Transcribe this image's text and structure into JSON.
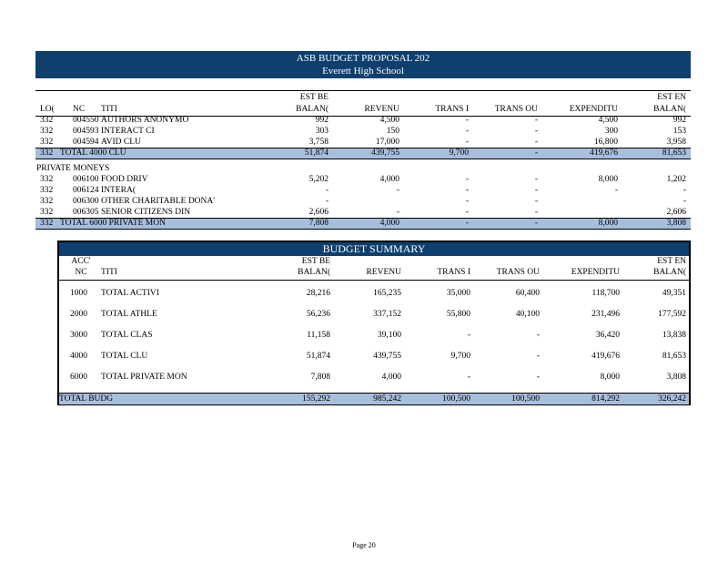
{
  "document": {
    "title": "ASB BUDGET PROPOSAL 202",
    "school": "Everett High School",
    "page_label": "Page 20"
  },
  "detail": {
    "headers": {
      "loc": "LO(",
      "no": "NC",
      "title": "TITI",
      "est_beg_1": "EST BE",
      "est_beg_2": "BALAN(",
      "revenue": "REVENU",
      "trans_in": "TRANS I",
      "trans_out": "TRANS OU",
      "expenditures": "EXPENDITU",
      "est_end_1": "EST EN",
      "est_end_2": "BALAN("
    },
    "rows": [
      {
        "loc": "332",
        "no": "004550",
        "title": "AUTHORS ANONYMO",
        "est_beg": "992",
        "revenue": "4,500",
        "trans_in": "-",
        "trans_out": "-",
        "expenditures": "4,500",
        "est_end": "992"
      },
      {
        "loc": "332",
        "no": "004593",
        "title": "INTERACT CI",
        "est_beg": "303",
        "revenue": "150",
        "trans_in": "-",
        "trans_out": "-",
        "expenditures": "300",
        "est_end": "153"
      },
      {
        "loc": "332",
        "no": "004594",
        "title": "AVID CLU",
        "est_beg": "3,758",
        "revenue": "17,000",
        "trans_in": "-",
        "trans_out": "-",
        "expenditures": "16,800",
        "est_end": "3,958"
      }
    ],
    "total_clubs": {
      "loc": "332",
      "title": "TOTAL 4000 CLU",
      "est_beg": "51,874",
      "revenue": "439,755",
      "trans_in": "9,700",
      "trans_out": "-",
      "expenditures": "419,676",
      "est_end": "81,653"
    },
    "private_heading": "PRIVATE MONEYS",
    "private_rows": [
      {
        "loc": "332",
        "no": "006100",
        "title": "FOOD DRIV",
        "est_beg": "5,202",
        "revenue": "4,000",
        "trans_in": "-",
        "trans_out": "-",
        "expenditures": "8,000",
        "est_end": "1,202"
      },
      {
        "loc": "332",
        "no": "006124",
        "title": "INTERA(",
        "est_beg": "-",
        "revenue": "-",
        "trans_in": "-",
        "trans_out": "-",
        "expenditures": "-",
        "est_end": "-"
      },
      {
        "loc": "332",
        "no": "006300",
        "title": "OTHER CHARITABLE DONA'",
        "est_beg": "-",
        "revenue": "",
        "trans_in": "-",
        "trans_out": "-",
        "expenditures": "",
        "est_end": "-"
      },
      {
        "loc": "332",
        "no": "006305",
        "title": "SENIOR CITIZENS DIN",
        "est_beg": "2,606",
        "revenue": "-",
        "trans_in": "-",
        "trans_out": "-",
        "expenditures": "",
        "est_end": "2,606"
      }
    ],
    "total_private": {
      "loc": "332",
      "title": "TOTAL 6000 PRIVATE MON",
      "est_beg": "7,808",
      "revenue": "4,000",
      "trans_in": "-",
      "trans_out": "-",
      "expenditures": "8,000",
      "est_end": "3,808"
    }
  },
  "summary": {
    "title": "BUDGET SUMMARY",
    "headers": {
      "acct_1": "ACC'",
      "acct_2": "NC",
      "title": "TITI",
      "est_beg_1": "EST BE",
      "est_beg_2": "BALAN(",
      "revenue": "REVENU",
      "trans_in": "TRANS I",
      "trans_out": "TRANS OU",
      "expenditures": "EXPENDITU",
      "est_end_1": "EST EN",
      "est_end_2": "BALAN("
    },
    "rows": [
      {
        "acct": "1000",
        "title": "TOTAL ACTIVI",
        "est_beg": "28,216",
        "revenue": "165,235",
        "trans_in": "35,000",
        "trans_out": "60,400",
        "expenditures": "118,700",
        "est_end": "49,351"
      },
      {
        "acct": "2000",
        "title": "TOTAL ATHLE",
        "est_beg": "56,236",
        "revenue": "337,152",
        "trans_in": "55,800",
        "trans_out": "40,100",
        "expenditures": "231,496",
        "est_end": "177,592"
      },
      {
        "acct": "3000",
        "title": "TOTAL CLAS",
        "est_beg": "11,158",
        "revenue": "39,100",
        "trans_in": "-",
        "trans_out": "-",
        "expenditures": "36,420",
        "est_end": "13,838"
      },
      {
        "acct": "4000",
        "title": "TOTAL CLU",
        "est_beg": "51,874",
        "revenue": "439,755",
        "trans_in": "9,700",
        "trans_out": "-",
        "expenditures": "419,676",
        "est_end": "81,653"
      },
      {
        "acct": "6000",
        "title": "TOTAL PRIVATE MON",
        "est_beg": "7,808",
        "revenue": "4,000",
        "trans_in": "-",
        "trans_out": "-",
        "expenditures": "8,000",
        "est_end": "3,808"
      }
    ],
    "total": {
      "title": "TOTAL BUDG",
      "est_beg": "155,292",
      "revenue": "985,242",
      "trans_in": "100,500",
      "trans_out": "100,500",
      "expenditures": "814,292",
      "est_end": "326,242"
    }
  }
}
